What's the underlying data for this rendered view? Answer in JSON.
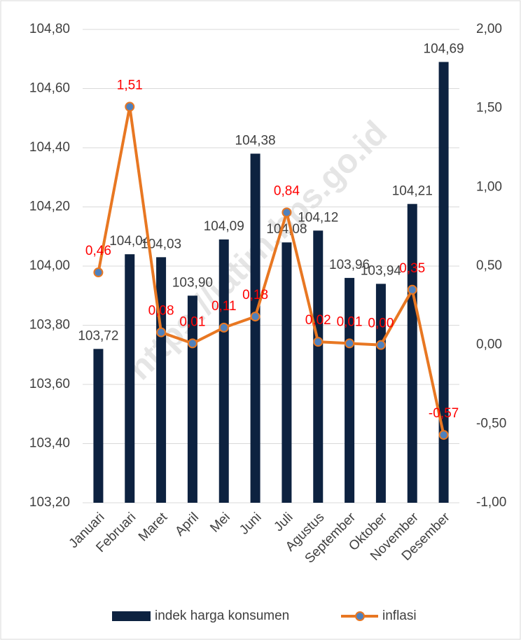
{
  "chart_data": {
    "type": "bar_line",
    "watermark": "https://jatim.bps.go.id",
    "categories": [
      "Januari",
      "Februari",
      "Maret",
      "April",
      "Mei",
      "Juni",
      "Juli",
      "Agustus",
      "September",
      "Oktober",
      "November",
      "Desember"
    ],
    "series": [
      {
        "name": "indek harga konsumen",
        "type": "bar",
        "color": "#0d2240",
        "values": [
          103.72,
          104.04,
          104.03,
          103.9,
          104.09,
          104.38,
          104.08,
          104.12,
          103.96,
          103.94,
          104.21,
          104.69
        ],
        "value_labels": [
          "103,72",
          "104,04",
          "104,03",
          "103,90",
          "104,09",
          "104,38",
          "104,08",
          "104,12",
          "103,96",
          "103,94",
          "104,21",
          "104,69"
        ]
      },
      {
        "name": "inflasi",
        "type": "line",
        "axis": "y2",
        "color": "#e87722",
        "marker_color": "#4f81bd",
        "values": [
          0.46,
          1.51,
          0.08,
          0.01,
          0.11,
          0.18,
          0.84,
          0.02,
          0.01,
          0.0,
          0.35,
          -0.57
        ],
        "value_labels": [
          "0,46",
          "1,51",
          "0,08",
          "0,01",
          "0,11",
          "0,18",
          "0,84",
          "0,02",
          "0,01",
          "0,00",
          "0,35",
          "-0,57"
        ]
      }
    ],
    "ylim": [
      103.2,
      104.8
    ],
    "yticks": [
      {
        "value": 103.2,
        "label": "103,20"
      },
      {
        "value": 103.4,
        "label": "103,40"
      },
      {
        "value": 103.6,
        "label": "103,60"
      },
      {
        "value": 103.8,
        "label": "103,80"
      },
      {
        "value": 104.0,
        "label": "104,00"
      },
      {
        "value": 104.2,
        "label": "104,20"
      },
      {
        "value": 104.4,
        "label": "104,40"
      },
      {
        "value": 104.6,
        "label": "104,60"
      },
      {
        "value": 104.8,
        "label": "104,80"
      }
    ],
    "y2lim": [
      -1,
      2
    ],
    "y2ticks": [
      {
        "value": -1,
        "label": "-1,00"
      },
      {
        "value": -0.5,
        "label": "-0,50"
      },
      {
        "value": 0,
        "label": "0,00"
      },
      {
        "value": 0.5,
        "label": "0,50"
      },
      {
        "value": 1,
        "label": "1,00"
      },
      {
        "value": 1.5,
        "label": "1,50"
      },
      {
        "value": 2,
        "label": "2,00"
      }
    ],
    "grid": true,
    "legend": "bottom"
  }
}
